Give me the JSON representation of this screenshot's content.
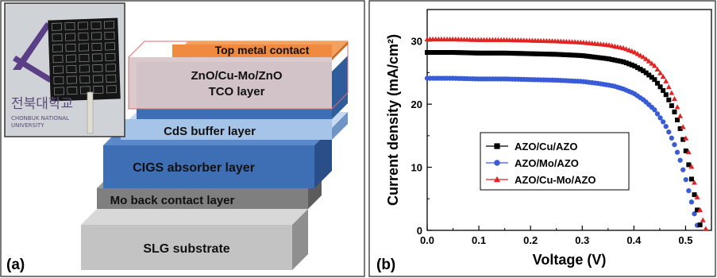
{
  "panel_a": {
    "label": "(a)",
    "photo": {
      "university_korean": "전북대학교",
      "university_line1": "CHONBUK NATIONAL",
      "university_line2": "UNIVERSITY"
    },
    "layers": [
      {
        "key": "top_metal",
        "label": "Top metal contact",
        "color": "#f08a40"
      },
      {
        "key": "tco",
        "label_line1": "ZnO/Cu-Mo/ZnO",
        "label_line2": "TCO layer",
        "color": "#d9c7c9"
      },
      {
        "key": "cds",
        "label": "CdS buffer layer",
        "color": "#a6c4e8"
      },
      {
        "key": "cigs",
        "label": "CIGS absorber layer",
        "color": "#3e6fb5"
      },
      {
        "key": "mo",
        "label": "Mo back contact layer",
        "color": "#7f7f7f"
      },
      {
        "key": "slg",
        "label": "SLG substrate",
        "color": "#c3c3c3"
      }
    ]
  },
  "panel_b": {
    "label": "(b)"
  },
  "chart_data": {
    "type": "scatter",
    "xlabel": "Voltage (V)",
    "ylabel": "Current density (mA/cm²)",
    "xlim": [
      0.0,
      0.55
    ],
    "ylim": [
      0,
      35
    ],
    "x_ticks": [
      "0.0",
      "0.1",
      "0.2",
      "0.3",
      "0.4",
      "0.5"
    ],
    "y_ticks": [
      "0",
      "10",
      "20",
      "30"
    ],
    "grid": false,
    "legend_position": "center-left",
    "series": [
      {
        "name": "AZO/Cu/AZO",
        "marker": "square",
        "color": "#000000",
        "x": [
          0.0,
          0.05,
          0.1,
          0.15,
          0.2,
          0.25,
          0.3,
          0.35,
          0.38,
          0.4,
          0.42,
          0.44,
          0.46,
          0.47,
          0.48,
          0.49,
          0.5,
          0.51,
          0.52,
          0.53
        ],
        "y": [
          28.2,
          28.2,
          28.1,
          28.1,
          28.0,
          27.9,
          27.7,
          27.2,
          26.7,
          26.1,
          25.2,
          23.9,
          21.8,
          20.3,
          18.5,
          16.0,
          12.8,
          8.8,
          4.3,
          0.0
        ]
      },
      {
        "name": "AZO/Mo/AZO",
        "marker": "circle",
        "color": "#3a5bd6",
        "x": [
          0.0,
          0.05,
          0.1,
          0.15,
          0.2,
          0.25,
          0.3,
          0.33,
          0.36,
          0.38,
          0.4,
          0.42,
          0.44,
          0.46,
          0.47,
          0.48,
          0.49,
          0.5,
          0.51,
          0.52,
          0.525
        ],
        "y": [
          24.1,
          24.1,
          24.0,
          24.0,
          23.9,
          23.8,
          23.6,
          23.3,
          22.9,
          22.4,
          21.7,
          20.6,
          19.1,
          16.8,
          15.2,
          13.3,
          11.0,
          8.2,
          5.0,
          1.6,
          0.0
        ]
      },
      {
        "name": "AZO/Cu-Mo/AZO",
        "marker": "triangle",
        "color": "#e32222",
        "x": [
          0.0,
          0.05,
          0.1,
          0.15,
          0.2,
          0.25,
          0.3,
          0.35,
          0.38,
          0.4,
          0.42,
          0.44,
          0.46,
          0.48,
          0.49,
          0.5,
          0.51,
          0.52,
          0.53,
          0.54
        ],
        "y": [
          30.3,
          30.3,
          30.2,
          30.2,
          30.1,
          30.0,
          29.8,
          29.4,
          28.9,
          28.3,
          27.4,
          26.1,
          24.0,
          20.6,
          18.0,
          14.8,
          10.8,
          6.2,
          2.5,
          0.0
        ]
      }
    ]
  }
}
